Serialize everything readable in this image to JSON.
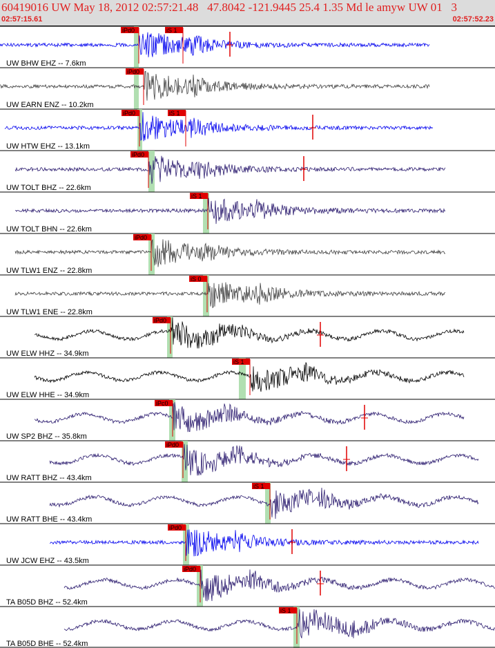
{
  "header": {
    "title": "60419016 UW May 18, 2012 02:57:21.48   47.8042 -121.9445 25.4 1.35 Md le amyw UW 01   3",
    "time_start": "02:57:15.61",
    "time_end": "02:57:52.23"
  },
  "colors": {
    "header_text": "#e02020",
    "header_bg": "#dcdcdc",
    "pick_label_bg": "#e00000",
    "pick_line": "#e00000",
    "window_band": "#a8dba8",
    "trace_blue": "#0000ee",
    "trace_gray": "#404040",
    "trace_black": "#000000",
    "trace_navy": "#2a1a6e"
  },
  "chart_data": {
    "type": "line",
    "title": "60419016 UW May 18, 2012 02:57:21.48   47.8042 -121.9445 25.4 1.35 Md le amyw UW 01   3",
    "x_unit": "time",
    "xlim": [
      "02:57:15.61",
      "02:57:52.23"
    ],
    "series": [
      {
        "name": "UW BHW EHZ -- 7.6km",
        "color": "trace_blue",
        "t_start": 0.0,
        "t_end": 0.867,
        "picks": [
          {
            "label": "iPd0",
            "t": 0.28
          },
          {
            "label": "iS 1",
            "t": 0.37
          }
        ],
        "end_mark": 0.465,
        "band": [
          0.27,
          0.28
        ]
      },
      {
        "name": "UW EARN ENZ -- 10.2km",
        "color": "trace_gray",
        "t_start": 0.0,
        "t_end": 0.867,
        "picks": [
          {
            "label": "iPd0",
            "t": 0.29
          }
        ],
        "band": [
          0.27,
          0.28
        ]
      },
      {
        "name": "UW HTW EHZ -- 13.1km",
        "color": "trace_blue",
        "t_start": 0.01,
        "t_end": 0.874,
        "picks": [
          {
            "label": "iPd0",
            "t": 0.282
          },
          {
            "label": "iS 1",
            "t": 0.375
          }
        ],
        "end_mark": 0.632,
        "band": [
          0.278,
          0.288
        ]
      },
      {
        "name": "UW TOLT BHZ -- 22.6km",
        "color": "trace_navy",
        "t_start": 0.03,
        "t_end": 0.9,
        "picks": [
          {
            "label": "iPd0",
            "t": 0.3
          }
        ],
        "end_mark": 0.614,
        "band": [
          0.3,
          0.312
        ]
      },
      {
        "name": "UW TOLT BHN -- 22.6km",
        "color": "trace_navy",
        "t_start": 0.03,
        "t_end": 0.9,
        "picks": [
          {
            "label": "iS 1",
            "t": 0.42
          }
        ],
        "band": [
          0.41,
          0.422
        ]
      },
      {
        "name": "UW TLW1 ENZ -- 22.8km",
        "color": "trace_gray",
        "t_start": 0.03,
        "t_end": 0.9,
        "picks": [
          {
            "label": "iPd0",
            "t": 0.305
          }
        ],
        "band": [
          0.3,
          0.312
        ]
      },
      {
        "name": "UW TLW1 ENE -- 22.8km",
        "color": "trace_gray",
        "t_start": 0.03,
        "t_end": 0.9,
        "picks": [
          {
            "label": "iS 0",
            "t": 0.418
          }
        ],
        "band": [
          0.41,
          0.422
        ]
      },
      {
        "name": "UW ELW HHZ -- 34.9km",
        "color": "trace_black",
        "t_start": 0.07,
        "t_end": 0.937,
        "picks": [
          {
            "label": "iPd0",
            "t": 0.345
          }
        ],
        "end_mark": 0.647,
        "band": [
          0.337,
          0.349
        ]
      },
      {
        "name": "UW ELW HHE -- 34.9km",
        "color": "trace_black",
        "t_start": 0.07,
        "t_end": 0.937,
        "picks": [
          {
            "label": "iS 1",
            "t": 0.505
          }
        ],
        "band": [
          0.483,
          0.497
        ]
      },
      {
        "name": "UW SP2 BHZ -- 35.8km",
        "color": "trace_navy",
        "t_start": 0.07,
        "t_end": 0.937,
        "picks": [
          {
            "label": "iPc0",
            "t": 0.348
          }
        ],
        "end_mark": 0.737,
        "band": [
          0.342,
          0.354
        ]
      },
      {
        "name": "UW RATT BHZ -- 43.4km",
        "color": "trace_navy",
        "t_start": 0.1,
        "t_end": 0.967,
        "picks": [
          {
            "label": "iPd0",
            "t": 0.37
          }
        ],
        "end_mark": 0.7,
        "band": [
          0.367,
          0.379
        ]
      },
      {
        "name": "UW RATT BHE -- 43.4km",
        "color": "trace_navy",
        "t_start": 0.1,
        "t_end": 0.967,
        "picks": [
          {
            "label": "iS 1",
            "t": 0.545
          }
        ],
        "band": [
          0.535,
          0.547
        ]
      },
      {
        "name": "UW JCW EHZ -- 43.5km",
        "color": "trace_blue",
        "t_start": 0.1,
        "t_end": 0.967,
        "picks": [
          {
            "label": "iPd0",
            "t": 0.375
          }
        ],
        "end_mark": 0.59,
        "band": [
          0.37,
          0.382
        ]
      },
      {
        "name": "TA B05D BHZ -- 52.4km",
        "color": "trace_navy",
        "t_start": 0.13,
        "t_end": 1.0,
        "picks": [
          {
            "label": "iPd0",
            "t": 0.405
          }
        ],
        "end_mark": 0.647,
        "band": [
          0.398,
          0.41
        ]
      },
      {
        "name": "TA B05D BHE -- 52.4km",
        "color": "trace_navy",
        "t_start": 0.13,
        "t_end": 1.0,
        "picks": [
          {
            "label": "iS 1",
            "t": 0.6
          }
        ],
        "band": [
          0.593,
          0.605
        ]
      }
    ]
  }
}
